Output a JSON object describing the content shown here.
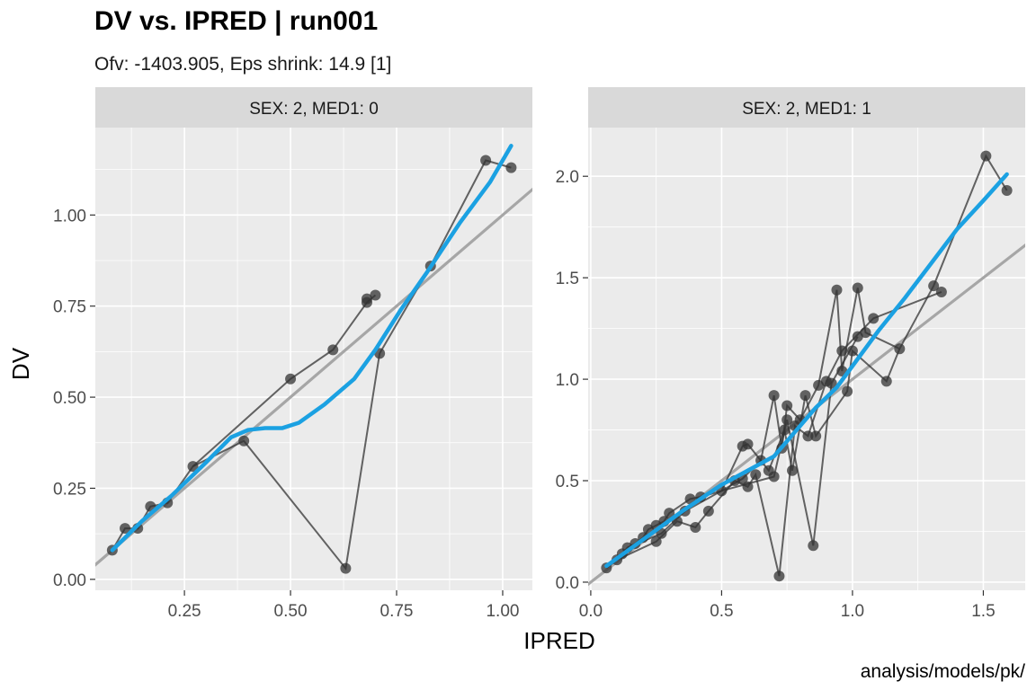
{
  "chart_data": {
    "type": "scatter",
    "title": "DV vs. IPRED | run001",
    "subtitle": "Ofv: -1403.905, Eps shrink: 14.9 [1]",
    "xlabel": "IPRED",
    "ylabel": "DV",
    "caption": "analysis/models/pk/",
    "grid": true,
    "colors": {
      "points": "#333333",
      "lines": "#333333",
      "identity": "#a6a6a6",
      "smooth": "#1ba1e2",
      "panel_bg": "#ebebeb",
      "strip_bg": "#d9d9d9",
      "gridline": "#ffffff"
    },
    "panels": [
      {
        "strip": "SEX: 2, MED1: 0",
        "xlim": [
          0.04,
          1.07
        ],
        "ylim": [
          -0.03,
          1.24
        ],
        "x_ticks": [
          0.25,
          0.5,
          0.75,
          1.0
        ],
        "x_tick_labels": [
          "0.25",
          "0.50",
          "0.75",
          "1.00"
        ],
        "y_ticks": [
          0.0,
          0.25,
          0.5,
          0.75,
          1.0
        ],
        "y_tick_labels": [
          "0.00",
          "0.25",
          "0.50",
          "0.75",
          "1.00"
        ],
        "points": [
          [
            0.08,
            0.08
          ],
          [
            0.11,
            0.14
          ],
          [
            0.14,
            0.14
          ],
          [
            0.17,
            0.2
          ],
          [
            0.21,
            0.21
          ],
          [
            0.27,
            0.31
          ],
          [
            0.39,
            0.38
          ],
          [
            0.5,
            0.55
          ],
          [
            0.6,
            0.63
          ],
          [
            0.68,
            0.76
          ],
          [
            0.68,
            0.77
          ],
          [
            0.7,
            0.78
          ],
          [
            0.71,
            0.62
          ],
          [
            0.83,
            0.86
          ],
          [
            0.96,
            1.15
          ],
          [
            1.02,
            1.13
          ],
          [
            0.63,
            0.03
          ]
        ],
        "paths": [
          [
            [
              0.08,
              0.08
            ],
            [
              0.11,
              0.14
            ],
            [
              0.14,
              0.14
            ],
            [
              0.17,
              0.2
            ],
            [
              0.21,
              0.21
            ],
            [
              0.27,
              0.31
            ],
            [
              0.39,
              0.38
            ],
            [
              0.63,
              0.03
            ],
            [
              0.71,
              0.62
            ],
            [
              0.83,
              0.86
            ],
            [
              0.96,
              1.15
            ],
            [
              1.02,
              1.13
            ]
          ],
          [
            [
              0.27,
              0.31
            ],
            [
              0.5,
              0.55
            ],
            [
              0.6,
              0.63
            ],
            [
              0.68,
              0.76
            ],
            [
              0.7,
              0.78
            ]
          ]
        ],
        "smooth": [
          [
            0.08,
            0.08
          ],
          [
            0.15,
            0.16
          ],
          [
            0.22,
            0.23
          ],
          [
            0.3,
            0.32
          ],
          [
            0.36,
            0.39
          ],
          [
            0.4,
            0.41
          ],
          [
            0.44,
            0.415
          ],
          [
            0.48,
            0.415
          ],
          [
            0.52,
            0.43
          ],
          [
            0.58,
            0.48
          ],
          [
            0.65,
            0.55
          ],
          [
            0.7,
            0.63
          ],
          [
            0.76,
            0.74
          ],
          [
            0.82,
            0.84
          ],
          [
            0.9,
            0.98
          ],
          [
            0.97,
            1.09
          ],
          [
            1.02,
            1.19
          ]
        ]
      },
      {
        "strip": "SEX: 2, MED1: 1",
        "xlim": [
          -0.01,
          1.66
        ],
        "ylim": [
          -0.04,
          2.24
        ],
        "x_ticks": [
          0.0,
          0.5,
          1.0,
          1.5
        ],
        "x_tick_labels": [
          "0.0",
          "0.5",
          "1.0",
          "1.5"
        ],
        "y_ticks": [
          0.0,
          0.5,
          1.0,
          1.5,
          2.0
        ],
        "y_tick_labels": [
          "0.0",
          "0.5",
          "1.0",
          "1.5",
          "2.0"
        ],
        "points": [
          [
            0.06,
            0.07
          ],
          [
            0.1,
            0.11
          ],
          [
            0.12,
            0.14
          ],
          [
            0.14,
            0.17
          ],
          [
            0.17,
            0.19
          ],
          [
            0.2,
            0.22
          ],
          [
            0.22,
            0.26
          ],
          [
            0.25,
            0.28
          ],
          [
            0.25,
            0.2
          ],
          [
            0.27,
            0.24
          ],
          [
            0.28,
            0.3
          ],
          [
            0.3,
            0.34
          ],
          [
            0.33,
            0.3
          ],
          [
            0.36,
            0.35
          ],
          [
            0.38,
            0.41
          ],
          [
            0.4,
            0.27
          ],
          [
            0.42,
            0.42
          ],
          [
            0.45,
            0.35
          ],
          [
            0.5,
            0.45
          ],
          [
            0.55,
            0.5
          ],
          [
            0.58,
            0.51
          ],
          [
            0.6,
            0.47
          ],
          [
            0.63,
            0.53
          ],
          [
            0.65,
            0.6
          ],
          [
            0.58,
            0.67
          ],
          [
            0.6,
            0.68
          ],
          [
            0.68,
            0.55
          ],
          [
            0.7,
            0.52
          ],
          [
            0.7,
            0.92
          ],
          [
            0.72,
            0.03
          ],
          [
            0.73,
            0.66
          ],
          [
            0.74,
            0.75
          ],
          [
            0.75,
            0.87
          ],
          [
            0.75,
            0.8
          ],
          [
            0.77,
            0.55
          ],
          [
            0.78,
            0.77
          ],
          [
            0.8,
            0.8
          ],
          [
            0.82,
            0.92
          ],
          [
            0.83,
            0.72
          ],
          [
            0.85,
            0.18
          ],
          [
            0.86,
            0.72
          ],
          [
            0.87,
            0.97
          ],
          [
            0.9,
            0.99
          ],
          [
            0.92,
            0.98
          ],
          [
            0.94,
            1.44
          ],
          [
            0.96,
            1.14
          ],
          [
            0.96,
            1.04
          ],
          [
            0.98,
            0.94
          ],
          [
            1.0,
            1.14
          ],
          [
            1.02,
            1.45
          ],
          [
            1.02,
            1.21
          ],
          [
            1.05,
            1.23
          ],
          [
            1.08,
            1.3
          ],
          [
            1.13,
            0.99
          ],
          [
            1.18,
            1.15
          ],
          [
            1.31,
            1.46
          ],
          [
            1.34,
            1.43
          ],
          [
            1.51,
            2.1
          ],
          [
            1.59,
            1.93
          ]
        ],
        "paths": [
          [
            [
              0.06,
              0.07
            ],
            [
              0.1,
              0.11
            ],
            [
              0.12,
              0.14
            ],
            [
              0.14,
              0.17
            ],
            [
              0.17,
              0.19
            ],
            [
              0.2,
              0.22
            ],
            [
              0.22,
              0.26
            ],
            [
              0.25,
              0.28
            ],
            [
              0.28,
              0.3
            ],
            [
              0.3,
              0.34
            ],
            [
              0.38,
              0.41
            ],
            [
              0.42,
              0.42
            ],
            [
              0.5,
              0.45
            ],
            [
              0.58,
              0.51
            ],
            [
              0.65,
              0.6
            ],
            [
              0.7,
              0.92
            ],
            [
              0.73,
              0.66
            ],
            [
              0.75,
              0.87
            ],
            [
              0.8,
              0.8
            ],
            [
              0.87,
              0.97
            ],
            [
              0.94,
              1.44
            ],
            [
              0.96,
              1.04
            ],
            [
              1.02,
              1.45
            ],
            [
              1.05,
              1.23
            ],
            [
              1.18,
              1.15
            ],
            [
              1.31,
              1.46
            ],
            [
              1.51,
              2.1
            ],
            [
              1.59,
              1.93
            ]
          ],
          [
            [
              0.1,
              0.11
            ],
            [
              0.25,
              0.2
            ],
            [
              0.33,
              0.3
            ],
            [
              0.4,
              0.27
            ],
            [
              0.45,
              0.35
            ],
            [
              0.55,
              0.5
            ],
            [
              0.6,
              0.47
            ],
            [
              0.63,
              0.53
            ],
            [
              0.72,
              0.03
            ],
            [
              0.78,
              0.77
            ],
            [
              0.83,
              0.72
            ],
            [
              0.9,
              0.99
            ],
            [
              0.96,
              1.14
            ],
            [
              1.08,
              1.3
            ],
            [
              1.34,
              1.43
            ]
          ],
          [
            [
              0.14,
              0.17
            ],
            [
              0.27,
              0.24
            ],
            [
              0.36,
              0.35
            ],
            [
              0.5,
              0.45
            ],
            [
              0.58,
              0.67
            ],
            [
              0.6,
              0.68
            ],
            [
              0.68,
              0.55
            ],
            [
              0.74,
              0.75
            ],
            [
              0.77,
              0.55
            ],
            [
              0.82,
              0.92
            ],
            [
              0.86,
              0.72
            ],
            [
              0.98,
              0.94
            ],
            [
              1.0,
              1.14
            ],
            [
              1.13,
              0.99
            ],
            [
              1.18,
              1.15
            ]
          ],
          [
            [
              0.5,
              0.45
            ],
            [
              0.7,
              0.52
            ],
            [
              0.75,
              0.8
            ],
            [
              0.85,
              0.18
            ],
            [
              0.92,
              0.98
            ],
            [
              1.02,
              1.21
            ]
          ]
        ],
        "smooth": [
          [
            0.06,
            0.08
          ],
          [
            0.2,
            0.21
          ],
          [
            0.35,
            0.35
          ],
          [
            0.5,
            0.48
          ],
          [
            0.6,
            0.55
          ],
          [
            0.7,
            0.62
          ],
          [
            0.78,
            0.74
          ],
          [
            0.86,
            0.86
          ],
          [
            0.94,
            0.96
          ],
          [
            1.02,
            1.1
          ],
          [
            1.1,
            1.24
          ],
          [
            1.2,
            1.4
          ],
          [
            1.3,
            1.57
          ],
          [
            1.4,
            1.74
          ],
          [
            1.5,
            1.88
          ],
          [
            1.59,
            2.01
          ]
        ]
      }
    ]
  }
}
